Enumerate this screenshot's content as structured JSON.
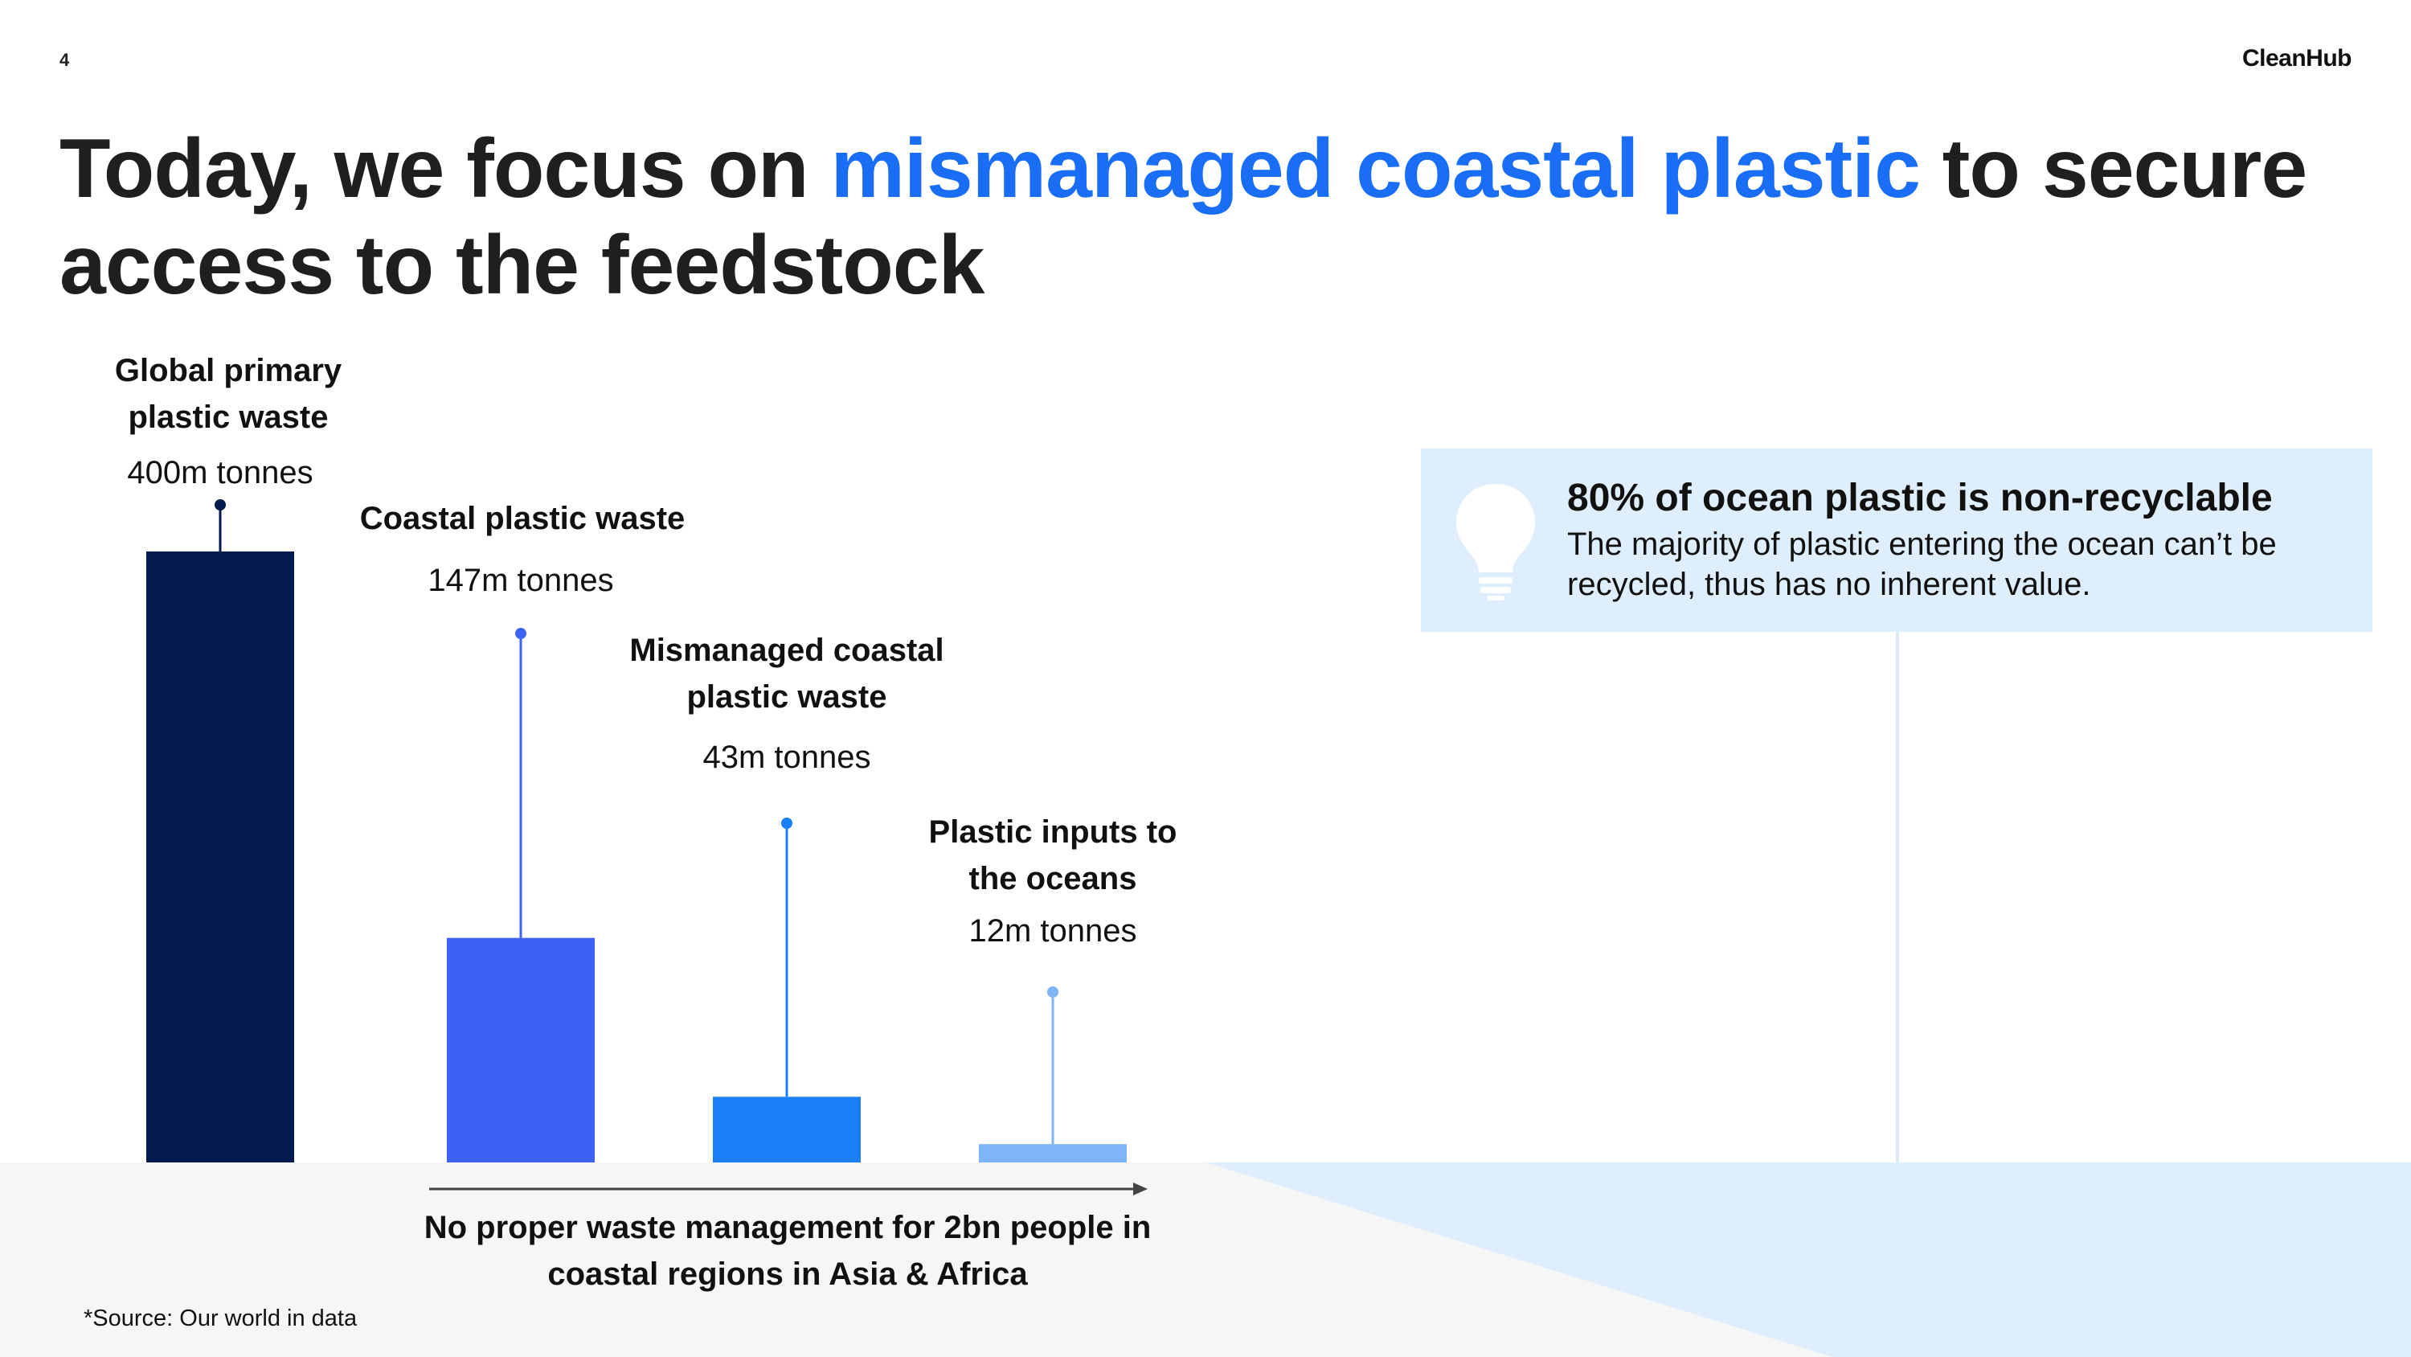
{
  "page": {
    "number": "4",
    "brand": "CleanHub"
  },
  "title": {
    "before": "Today, we focus on ",
    "highlight": "mismanaged coastal plastic",
    "after": " to secure access to the feedstock"
  },
  "chart_data": {
    "type": "bar",
    "categories": [
      "Global primary plastic waste",
      "Coastal plastic waste",
      "Mismanaged coastal plastic waste",
      "Plastic inputs to the oceans"
    ],
    "values": [
      400,
      147,
      43,
      12
    ],
    "value_labels": [
      "400m tonnes",
      "147m tonnes",
      "43m tonnes",
      "12m tonnes"
    ],
    "unit": "m tonnes",
    "colors": [
      "#021a4d",
      "#3e60f5",
      "#1a7ff8",
      "#7fb4f7"
    ],
    "grid": false,
    "legend": "none"
  },
  "arrow_caption": "No proper waste management for 2bn people in coastal regions in Asia & Africa",
  "source": "*Source: Our world in data",
  "callout": {
    "icon": "lightbulb-icon",
    "title": "80% of ocean plastic is non-recyclable",
    "body": "The majority of plastic entering the ocean can’t be recycled, thus has no inherent value."
  },
  "colors": {
    "accent": "#1a6df5",
    "callout_bg": "#dfeefd",
    "band_bg": "#f6f6f6"
  }
}
